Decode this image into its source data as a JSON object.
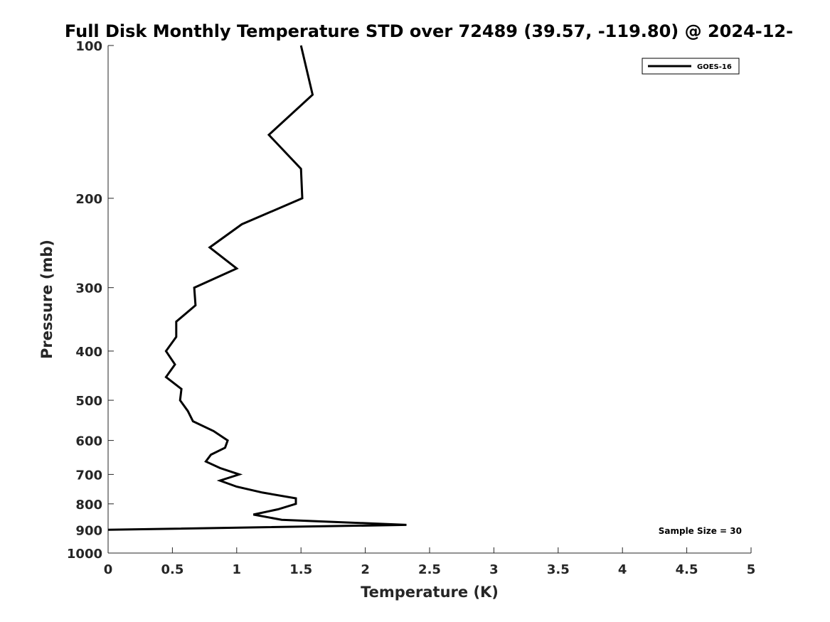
{
  "chart_data": {
    "type": "line",
    "title": "Full Disk Monthly Temperature STD over 72489 (39.57, -119.80) @ 2024-12-",
    "xlabel": "Temperature (K)",
    "ylabel": "Pressure (mb)",
    "xlim": [
      0,
      5
    ],
    "ylim": [
      100,
      1000
    ],
    "y_scale": "log",
    "y_reversed": true,
    "grid": false,
    "legend_position": "top-right",
    "x_ticks": [
      "0",
      "0.5",
      "1",
      "1.5",
      "2",
      "2.5",
      "3",
      "3.5",
      "4",
      "4.5",
      "5"
    ],
    "y_ticks": [
      "100",
      "200",
      "300",
      "400",
      "500",
      "600",
      "700",
      "800",
      "900",
      "1000"
    ],
    "series": [
      {
        "name": "GOES-16",
        "color": "#000000",
        "points": [
          [
            1.5,
            100
          ],
          [
            1.59,
            125
          ],
          [
            1.25,
            150
          ],
          [
            1.5,
            175
          ],
          [
            1.51,
            200
          ],
          [
            1.04,
            225
          ],
          [
            0.79,
            250
          ],
          [
            1.0,
            275
          ],
          [
            0.67,
            300
          ],
          [
            0.68,
            325
          ],
          [
            0.53,
            350
          ],
          [
            0.53,
            375
          ],
          [
            0.45,
            400
          ],
          [
            0.52,
            425
          ],
          [
            0.45,
            450
          ],
          [
            0.57,
            475
          ],
          [
            0.56,
            500
          ],
          [
            0.62,
            525
          ],
          [
            0.66,
            550
          ],
          [
            0.82,
            575
          ],
          [
            0.93,
            600
          ],
          [
            0.91,
            620
          ],
          [
            0.8,
            640
          ],
          [
            0.76,
            660
          ],
          [
            0.87,
            680
          ],
          [
            1.02,
            700
          ],
          [
            0.87,
            720
          ],
          [
            1.0,
            740
          ],
          [
            1.2,
            760
          ],
          [
            1.46,
            780
          ],
          [
            1.46,
            800
          ],
          [
            1.32,
            820
          ],
          [
            1.13,
            840
          ],
          [
            1.35,
            860
          ],
          [
            2.32,
            880
          ],
          [
            0.0,
            900
          ]
        ]
      }
    ],
    "annotation": "Sample Size = 30"
  }
}
